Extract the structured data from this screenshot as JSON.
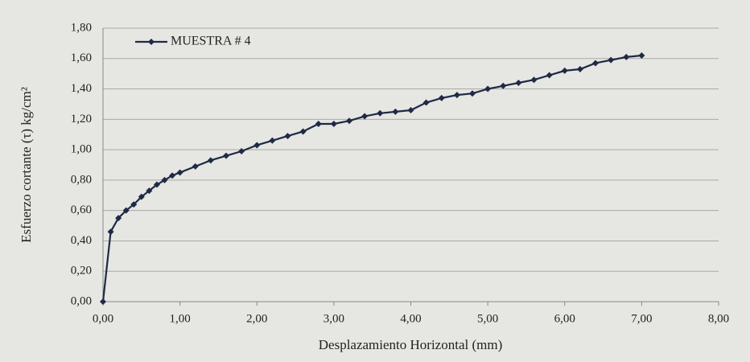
{
  "chart_data": {
    "type": "line",
    "xlabel": "Desplazamiento Horizontal (mm)",
    "ylabel": "Esfuerzo cortante (τ) kg/cm²",
    "x": [
      0,
      0.1,
      0.2,
      0.3,
      0.4,
      0.5,
      0.6,
      0.7,
      0.8,
      0.9,
      1.0,
      1.2,
      1.4,
      1.6,
      1.8,
      2.0,
      2.2,
      2.4,
      2.6,
      2.8,
      3.0,
      3.2,
      3.4,
      3.6,
      3.8,
      4.0,
      4.2,
      4.4,
      4.6,
      4.8,
      5.0,
      5.2,
      5.4,
      5.6,
      5.8,
      6.0,
      6.2,
      6.4,
      6.6,
      6.8,
      7.0
    ],
    "series": [
      {
        "name": "MUESTRA # 4",
        "color": "#1f2a44",
        "values": [
          0,
          0.46,
          0.55,
          0.6,
          0.64,
          0.69,
          0.73,
          0.77,
          0.8,
          0.83,
          0.85,
          0.89,
          0.93,
          0.96,
          0.99,
          1.03,
          1.06,
          1.09,
          1.12,
          1.17,
          1.17,
          1.19,
          1.22,
          1.24,
          1.25,
          1.26,
          1.31,
          1.34,
          1.36,
          1.37,
          1.4,
          1.42,
          1.44,
          1.46,
          1.49,
          1.52,
          1.53,
          1.57,
          1.59,
          1.61,
          1.62
        ]
      }
    ],
    "xlim": [
      0,
      8
    ],
    "ylim": [
      0,
      1.8
    ],
    "xticks": [
      {
        "value": 0,
        "label": "0,00"
      },
      {
        "value": 1,
        "label": "1,00"
      },
      {
        "value": 2,
        "label": "2,00"
      },
      {
        "value": 3,
        "label": "3,00"
      },
      {
        "value": 4,
        "label": "4,00"
      },
      {
        "value": 5,
        "label": "5,00"
      },
      {
        "value": 6,
        "label": "6,00"
      },
      {
        "value": 7,
        "label": "7,00"
      },
      {
        "value": 8,
        "label": "8,00"
      }
    ],
    "yticks": [
      {
        "value": 0,
        "label": "0,00"
      },
      {
        "value": 0.2,
        "label": "0,20"
      },
      {
        "value": 0.4,
        "label": "0,40"
      },
      {
        "value": 0.6,
        "label": "0,60"
      },
      {
        "value": 0.8,
        "label": "0,80"
      },
      {
        "value": 1.0,
        "label": "1,00"
      },
      {
        "value": 1.2,
        "label": "1,20"
      },
      {
        "value": 1.4,
        "label": "1,40"
      },
      {
        "value": 1.6,
        "label": "1,60"
      },
      {
        "value": 1.8,
        "label": "1,80"
      }
    ],
    "grid": true,
    "legend": "upper left"
  }
}
